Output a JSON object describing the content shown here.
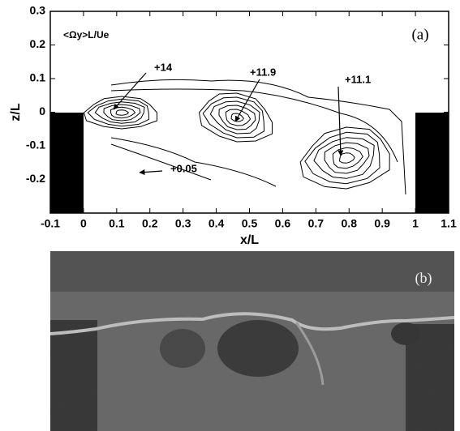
{
  "chart_data": {
    "type": "contour",
    "xlabel": "x/L",
    "ylabel": "z/L",
    "xlim": [
      -0.1,
      1.1
    ],
    "ylim": [
      -0.3,
      0.3
    ],
    "xticks": [
      -0.1,
      0,
      0.1,
      0.2,
      0.3,
      0.4,
      0.5,
      0.6,
      0.7,
      0.8,
      0.9,
      1,
      1.1
    ],
    "yticks": [
      -0.2,
      -0.1,
      0,
      0.1,
      0.2,
      0.3
    ],
    "quantity_label": "<Ωy>L/Ue",
    "panel_label": "(a)",
    "annotations": [
      "+14",
      "+11.9",
      "+11.1",
      "+0.05"
    ],
    "photo_label": "(b)"
  }
}
